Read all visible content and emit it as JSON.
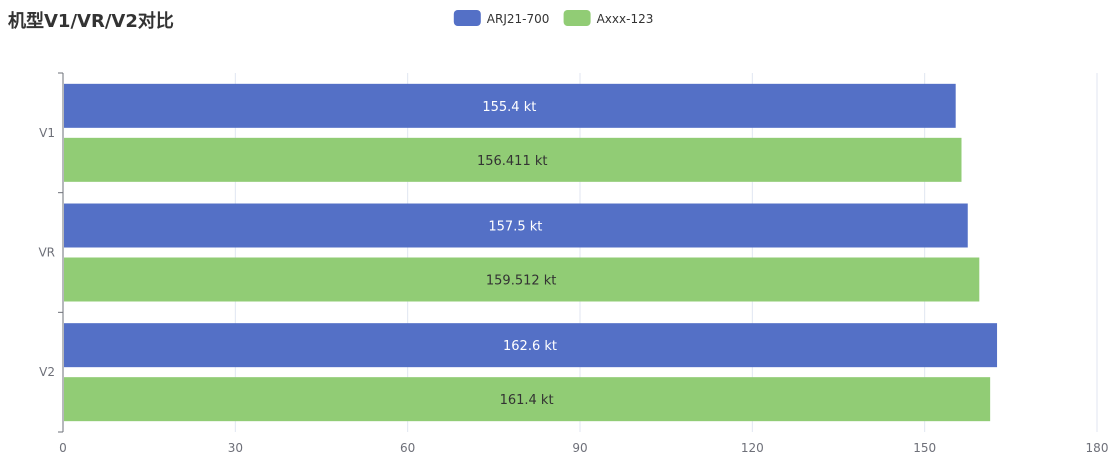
{
  "chart_data": {
    "type": "bar",
    "orientation": "horizontal",
    "title": "机型V1/VR/V2对比",
    "categories": [
      "V1",
      "VR",
      "V2"
    ],
    "series": [
      {
        "name": "ARJ21-700",
        "color": "#5470c6",
        "label_color": "#ffffff",
        "values": [
          155.4,
          157.5,
          162.6
        ],
        "labels": [
          "155.4 kt",
          "157.5 kt",
          "162.6 kt"
        ]
      },
      {
        "name": "Axxx-123",
        "color": "#91cc75",
        "label_color": "#333333",
        "values": [
          156.411,
          159.512,
          161.4
        ],
        "labels": [
          "156.411 kt",
          "159.512 kt",
          "161.4 kt"
        ]
      }
    ],
    "x_ticks": [
      0,
      30,
      60,
      90,
      120,
      150,
      180
    ],
    "xlim": [
      0,
      180
    ],
    "grid": "vertical",
    "legend_position": "top-center"
  }
}
